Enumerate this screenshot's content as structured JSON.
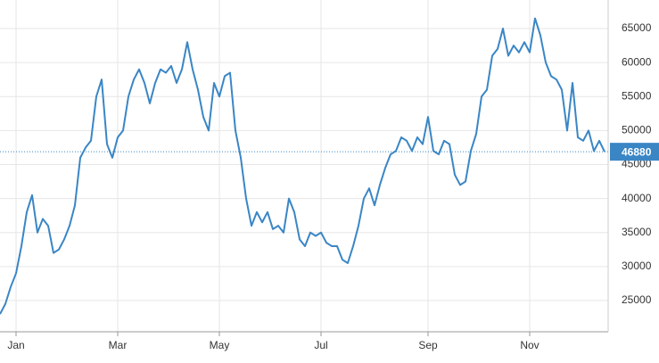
{
  "chart_data": {
    "type": "line",
    "categories": [
      null,
      null,
      null,
      "Jan",
      null,
      null,
      null,
      null,
      null,
      null,
      null,
      null,
      null,
      null,
      null,
      null,
      null,
      null,
      null,
      null,
      null,
      null,
      "Mar",
      null,
      null,
      null,
      null,
      null,
      null,
      null,
      null,
      null,
      null,
      null,
      null,
      null,
      null,
      null,
      null,
      null,
      null,
      "May",
      null,
      null,
      null,
      null,
      null,
      null,
      null,
      null,
      null,
      null,
      null,
      null,
      null,
      null,
      null,
      null,
      null,
      null,
      "Jul",
      null,
      null,
      null,
      null,
      null,
      null,
      null,
      null,
      null,
      null,
      null,
      null,
      null,
      null,
      null,
      null,
      null,
      null,
      null,
      "Sep",
      null,
      null,
      null,
      null,
      null,
      null,
      null,
      null,
      null,
      null,
      null,
      null,
      null,
      null,
      null,
      null,
      null,
      null,
      "Nov",
      null,
      null,
      null,
      null,
      null,
      null,
      null,
      null,
      null,
      null,
      null,
      null,
      null,
      null
    ],
    "series": [
      {
        "color": "#3a86c5",
        "values": [
          23000,
          24500,
          27000,
          29000,
          33000,
          38000,
          40500,
          35000,
          37000,
          36000,
          32000,
          32500,
          34000,
          36000,
          39000,
          46000,
          47500,
          48500,
          55000,
          57500,
          48000,
          46000,
          49000,
          50000,
          55000,
          57500,
          59000,
          57000,
          54000,
          57000,
          59000,
          58500,
          59500,
          57000,
          59000,
          63000,
          59000,
          56000,
          52000,
          50000,
          57000,
          55000,
          58000,
          58500,
          50000,
          46000,
          40000,
          36000,
          38000,
          36500,
          38000,
          35500,
          36000,
          35000,
          40000,
          38000,
          34000,
          33000,
          35000,
          34500,
          35000,
          33500,
          33000,
          33000,
          31000,
          30500,
          33000,
          36000,
          40000,
          41500,
          39000,
          42000,
          44500,
          46500,
          47000,
          49000,
          48500,
          47000,
          49000,
          48000,
          52000,
          47000,
          46500,
          48500,
          48000,
          43500,
          42000,
          42500,
          47000,
          49500,
          55000,
          56000,
          61000,
          62000,
          65000,
          61000,
          62500,
          61500,
          63000,
          61500,
          66500,
          64000,
          60000,
          58000,
          57500,
          56000,
          50000,
          57000,
          49000,
          48500,
          50000,
          47000,
          48500,
          46880
        ]
      }
    ],
    "ylim": [
      20400,
      69200
    ],
    "yticks": [
      25000,
      30000,
      35000,
      40000,
      45000,
      50000,
      55000,
      60000,
      65000
    ],
    "grid": true,
    "last_value_marker": true
  }
}
